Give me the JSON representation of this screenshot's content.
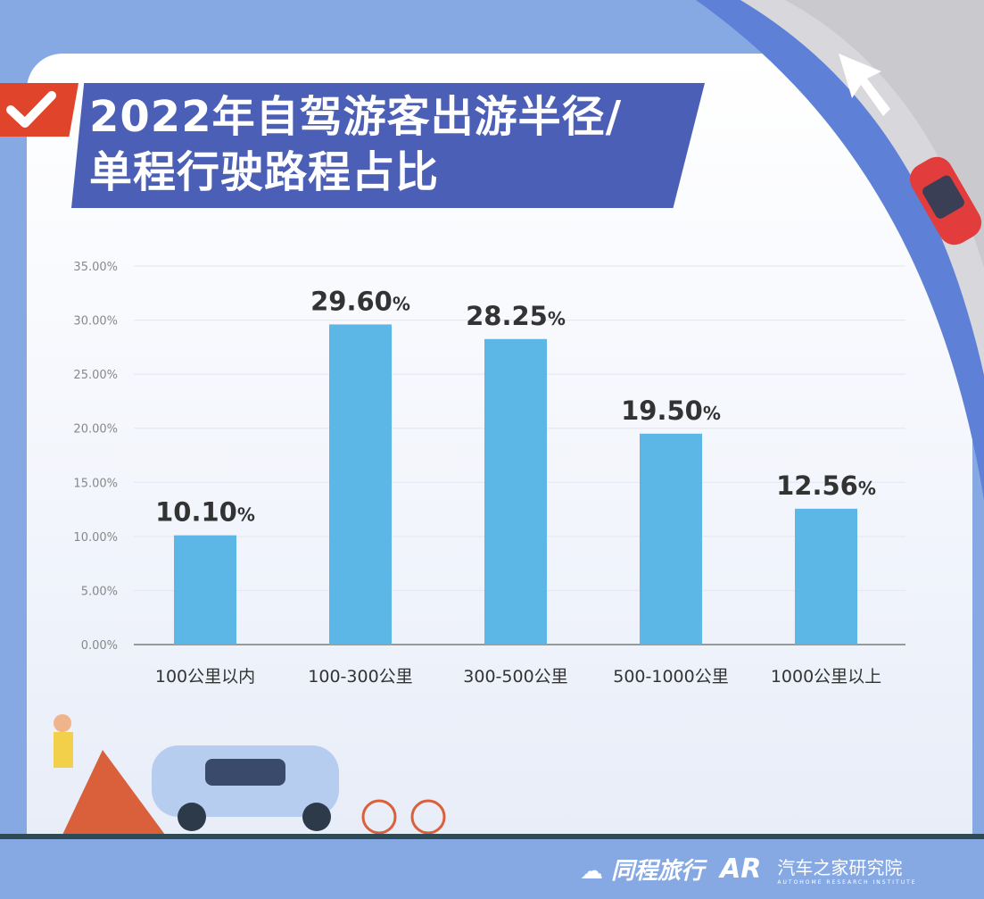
{
  "title_line1": "2022年自驾游客出游半径/",
  "title_line2": "单程行驶路程占比",
  "footer": {
    "brand1": "同程旅行",
    "brand2_mark": "AR",
    "brand2": "汽车之家研究院",
    "brand2_sub": "AUTOHOME RESEARCH INSTITUTE"
  },
  "colors": {
    "bar": "#5cb6e6",
    "banner": "#4b5fb6",
    "accent": "#e0442b",
    "background": "#86a9e4"
  },
  "chart_data": {
    "type": "bar",
    "title": "2022年自驾游客出游半径/单程行驶路程占比",
    "categories": [
      "100公里以内",
      "100-300公里",
      "300-500公里",
      "500-1000公里",
      "1000公里以上"
    ],
    "values": [
      10.1,
      29.6,
      28.25,
      19.5,
      12.56
    ],
    "data_labels": [
      "10.10",
      "29.60",
      "28.25",
      "19.50",
      "12.56"
    ],
    "unit": "%",
    "yticks": [
      "0.00%",
      "5.00%",
      "10.00%",
      "15.00%",
      "20.00%",
      "25.00%",
      "30.00%",
      "35.00%"
    ],
    "ylim": [
      0,
      35
    ],
    "grid": true
  }
}
